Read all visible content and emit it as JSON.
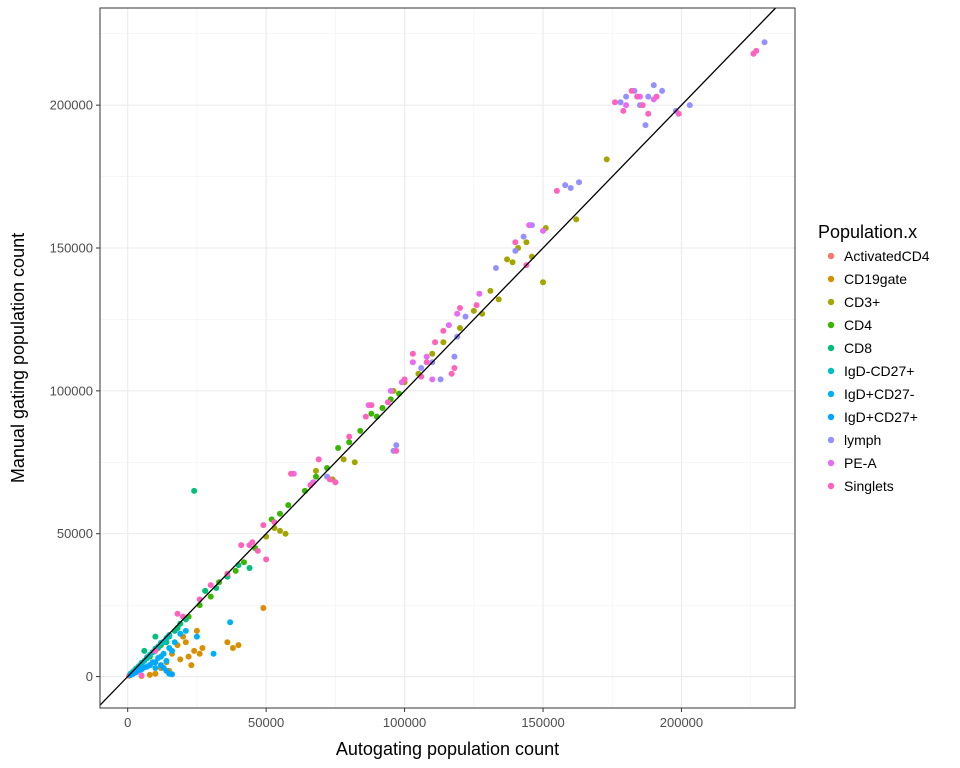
{
  "chart_data": {
    "type": "scatter",
    "xlabel": "Autogating population count",
    "ylabel": "Manual gating population count",
    "xlim": [
      -10000,
      241000
    ],
    "ylim": [
      -11000,
      234000
    ],
    "x_ticks": [
      0,
      50000,
      100000,
      150000,
      200000
    ],
    "y_ticks": [
      0,
      50000,
      100000,
      150000,
      200000
    ],
    "x_tick_labels": [
      "0",
      "50000",
      "100000",
      "150000",
      "200000"
    ],
    "y_tick_labels": [
      "0",
      "50000",
      "100000",
      "150000",
      "200000"
    ],
    "grid": true,
    "reference_line": {
      "type": "identity",
      "slope": 1,
      "intercept": 0
    },
    "legend": {
      "title": "Population.x",
      "position": "right"
    },
    "series": [
      {
        "name": "ActivatedCD4",
        "color": "#F8766D",
        "points": [
          [
            500,
            300
          ],
          [
            1000,
            800
          ],
          [
            1500,
            1200
          ],
          [
            2000,
            1700
          ],
          [
            3000,
            2600
          ],
          [
            800,
            500
          ],
          [
            2500,
            2000
          ],
          [
            1200,
            900
          ]
        ]
      },
      {
        "name": "CD19gate",
        "color": "#D89000",
        "points": [
          [
            5000,
            200
          ],
          [
            8000,
            600
          ],
          [
            10000,
            1000
          ],
          [
            12000,
            3000
          ],
          [
            14000,
            5000
          ],
          [
            16000,
            8000
          ],
          [
            18000,
            11000
          ],
          [
            20000,
            14000
          ],
          [
            22000,
            7000
          ],
          [
            23000,
            4000
          ],
          [
            24000,
            9000
          ],
          [
            25000,
            16000
          ],
          [
            26000,
            8000
          ],
          [
            27000,
            10000
          ],
          [
            36000,
            12000
          ],
          [
            38000,
            10000
          ],
          [
            40000,
            11000
          ],
          [
            49000,
            24000
          ],
          [
            15000,
            2000
          ],
          [
            19000,
            6000
          ],
          [
            21000,
            12000
          ]
        ]
      },
      {
        "name": "CD3+",
        "color": "#A3A500",
        "points": [
          [
            50000,
            49000
          ],
          [
            53000,
            52000
          ],
          [
            55000,
            51000
          ],
          [
            57000,
            50000
          ],
          [
            68000,
            72000
          ],
          [
            74000,
            69000
          ],
          [
            78000,
            76000
          ],
          [
            82000,
            75000
          ],
          [
            96000,
            100000
          ],
          [
            100000,
            103000
          ],
          [
            105000,
            106000
          ],
          [
            110000,
            113000
          ],
          [
            114000,
            117000
          ],
          [
            120000,
            122000
          ],
          [
            125000,
            128000
          ],
          [
            128000,
            127000
          ],
          [
            131000,
            135000
          ],
          [
            134000,
            132000
          ],
          [
            137000,
            146000
          ],
          [
            139000,
            145000
          ],
          [
            141000,
            150000
          ],
          [
            144000,
            152000
          ],
          [
            146000,
            147000
          ],
          [
            150000,
            138000
          ],
          [
            151000,
            157000
          ],
          [
            162000,
            160000
          ],
          [
            173000,
            181000
          ]
        ]
      },
      {
        "name": "CD4",
        "color": "#39B600",
        "points": [
          [
            8000,
            7000
          ],
          [
            12000,
            11000
          ],
          [
            15000,
            14000
          ],
          [
            18000,
            17000
          ],
          [
            22000,
            21000
          ],
          [
            26000,
            25000
          ],
          [
            28000,
            30000
          ],
          [
            30000,
            28000
          ],
          [
            33000,
            33000
          ],
          [
            36000,
            35000
          ],
          [
            39000,
            37000
          ],
          [
            42000,
            40000
          ],
          [
            46000,
            45000
          ],
          [
            52000,
            55000
          ],
          [
            55000,
            57000
          ],
          [
            58000,
            60000
          ],
          [
            64000,
            65000
          ],
          [
            68000,
            70000
          ],
          [
            72000,
            73000
          ],
          [
            76000,
            80000
          ],
          [
            80000,
            82000
          ],
          [
            84000,
            86000
          ],
          [
            88000,
            92000
          ],
          [
            90000,
            91000
          ],
          [
            92000,
            94000
          ],
          [
            95000,
            97000
          ],
          [
            98000,
            99000
          ]
        ]
      },
      {
        "name": "CD8",
        "color": "#00BF7D",
        "points": [
          [
            3000,
            2800
          ],
          [
            5000,
            4500
          ],
          [
            7000,
            6500
          ],
          [
            9000,
            8500
          ],
          [
            11000,
            10000
          ],
          [
            13000,
            12000
          ],
          [
            15000,
            14500
          ],
          [
            17000,
            16000
          ],
          [
            19000,
            18500
          ],
          [
            21000,
            20000
          ],
          [
            24000,
            65000
          ],
          [
            28000,
            30000
          ],
          [
            32000,
            31000
          ],
          [
            36000,
            35000
          ],
          [
            40000,
            39000
          ],
          [
            44000,
            38000
          ],
          [
            10000,
            14000
          ],
          [
            6000,
            9000
          ],
          [
            14000,
            12000
          ],
          [
            18000,
            17000
          ]
        ]
      },
      {
        "name": "IgD-CD27+",
        "color": "#00BFC4",
        "points": [
          [
            1000,
            1000
          ],
          [
            2000,
            1800
          ],
          [
            3000,
            2700
          ],
          [
            4000,
            3600
          ],
          [
            5000,
            4800
          ],
          [
            6000,
            5500
          ],
          [
            7000,
            6800
          ],
          [
            8000,
            7600
          ],
          [
            9000,
            8500
          ],
          [
            10000,
            9800
          ],
          [
            11000,
            10500
          ],
          [
            12000,
            11800
          ],
          [
            13000,
            12200
          ],
          [
            14000,
            13500
          ],
          [
            15000,
            14200
          ]
        ]
      },
      {
        "name": "IgD+CD27-",
        "color": "#00B0F6",
        "points": [
          [
            3000,
            1500
          ],
          [
            5000,
            2500
          ],
          [
            7000,
            3500
          ],
          [
            9000,
            5000
          ],
          [
            11000,
            6500
          ],
          [
            13000,
            8000
          ],
          [
            15000,
            10000
          ],
          [
            17000,
            12000
          ],
          [
            19000,
            15000
          ],
          [
            21000,
            16000
          ],
          [
            25000,
            14000
          ],
          [
            31000,
            8000
          ],
          [
            37000,
            19000
          ],
          [
            8000,
            4000
          ],
          [
            12000,
            7000
          ],
          [
            16000,
            9000
          ],
          [
            10000,
            3000
          ],
          [
            14000,
            5500
          ]
        ]
      },
      {
        "name": "IgD+CD27+",
        "color": "#00A5FF",
        "points": [
          [
            1000,
            500
          ],
          [
            2000,
            1000
          ],
          [
            3000,
            1500
          ],
          [
            4000,
            2200
          ],
          [
            5000,
            2800
          ],
          [
            6000,
            3200
          ],
          [
            8000,
            4000
          ],
          [
            10000,
            5000
          ],
          [
            12000,
            4000
          ],
          [
            14000,
            2000
          ],
          [
            15000,
            1000
          ],
          [
            16000,
            800
          ],
          [
            13000,
            3000
          ]
        ]
      },
      {
        "name": "lymph",
        "color": "#9590FF",
        "points": [
          [
            72000,
            70000
          ],
          [
            75000,
            68000
          ],
          [
            96000,
            79000
          ],
          [
            97000,
            81000
          ],
          [
            106000,
            108000
          ],
          [
            110000,
            110000
          ],
          [
            113000,
            104000
          ],
          [
            118000,
            112000
          ],
          [
            119000,
            119000
          ],
          [
            122000,
            126000
          ],
          [
            133000,
            143000
          ],
          [
            140000,
            149000
          ],
          [
            143000,
            154000
          ],
          [
            146000,
            158000
          ],
          [
            158000,
            172000
          ],
          [
            160000,
            171000
          ],
          [
            163000,
            173000
          ],
          [
            178000,
            201000
          ],
          [
            180000,
            203000
          ],
          [
            183000,
            205000
          ],
          [
            185000,
            200000
          ],
          [
            187000,
            193000
          ],
          [
            188000,
            203000
          ],
          [
            190000,
            207000
          ],
          [
            193000,
            205000
          ],
          [
            198000,
            198000
          ],
          [
            203000,
            200000
          ],
          [
            230000,
            222000
          ]
        ]
      },
      {
        "name": "PE-A",
        "color": "#E76BF3",
        "points": [
          [
            60000,
            71000
          ],
          [
            67000,
            68000
          ],
          [
            87000,
            95000
          ],
          [
            95000,
            100000
          ],
          [
            99000,
            103000
          ],
          [
            103000,
            110000
          ],
          [
            108000,
            112000
          ],
          [
            110000,
            104000
          ],
          [
            116000,
            123000
          ],
          [
            119000,
            127000
          ],
          [
            127000,
            134000
          ],
          [
            145000,
            158000
          ],
          [
            150000,
            156000
          ],
          [
            180000,
            200000
          ],
          [
            185000,
            203000
          ],
          [
            190000,
            202000
          ]
        ]
      },
      {
        "name": "Singlets",
        "color": "#FF62BC",
        "points": [
          [
            5000,
            400
          ],
          [
            10000,
            9000
          ],
          [
            18000,
            22000
          ],
          [
            20000,
            21000
          ],
          [
            26000,
            27000
          ],
          [
            30000,
            32000
          ],
          [
            36000,
            36000
          ],
          [
            41000,
            46000
          ],
          [
            44000,
            46000
          ],
          [
            45000,
            47000
          ],
          [
            47000,
            44000
          ],
          [
            49000,
            53000
          ],
          [
            50000,
            41000
          ],
          [
            53000,
            54000
          ],
          [
            59000,
            71000
          ],
          [
            66000,
            67000
          ],
          [
            69000,
            76000
          ],
          [
            73000,
            69000
          ],
          [
            75000,
            68000
          ],
          [
            80000,
            84000
          ],
          [
            86000,
            91000
          ],
          [
            88000,
            95000
          ],
          [
            94000,
            96000
          ],
          [
            97000,
            79000
          ],
          [
            100000,
            104000
          ],
          [
            103000,
            113000
          ],
          [
            106000,
            105000
          ],
          [
            108000,
            110000
          ],
          [
            111000,
            117000
          ],
          [
            114000,
            121000
          ],
          [
            117000,
            106000
          ],
          [
            118000,
            108000
          ],
          [
            120000,
            129000
          ],
          [
            126000,
            130000
          ],
          [
            140000,
            152000
          ],
          [
            144000,
            144000
          ],
          [
            155000,
            170000
          ],
          [
            176000,
            201000
          ],
          [
            179000,
            198000
          ],
          [
            182000,
            205000
          ],
          [
            184000,
            203000
          ],
          [
            186000,
            200000
          ],
          [
            188000,
            197000
          ],
          [
            191000,
            203000
          ],
          [
            199000,
            197000
          ],
          [
            226000,
            218000
          ],
          [
            227000,
            219000
          ]
        ]
      }
    ]
  }
}
